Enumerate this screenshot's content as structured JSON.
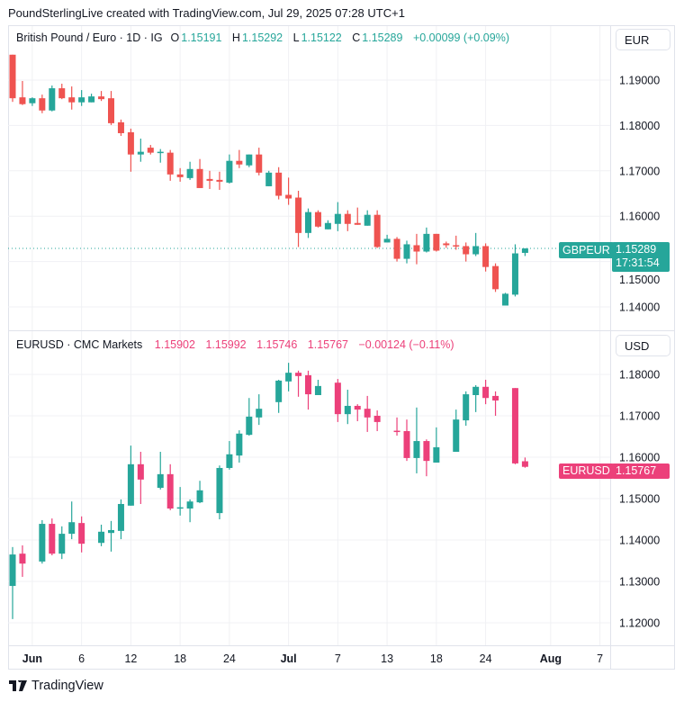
{
  "header": {
    "credit": "PoundSterlingLive created with TradingView.com, Jul 29, 2025 07:28 UTC+1"
  },
  "colors": {
    "up": "#26a69a",
    "down_top": "#ef5350",
    "down_bottom": "#ec407a",
    "grid": "#f0f1f4"
  },
  "top_pane": {
    "symbol": "British Pound / Euro · 1D · IG",
    "o_label": "O",
    "o": "1.15191",
    "h_label": "H",
    "h": "1.15292",
    "l_label": "L",
    "l": "1.15122",
    "c_label": "C",
    "c": "1.15289",
    "change": "+0.00099 (+0.09%)",
    "currency": "EUR",
    "price_ticks": [
      "1.19000",
      "1.18000",
      "1.17000",
      "1.16000",
      "1.15000",
      "1.14000"
    ],
    "tag_symbol": "GBPEUR",
    "tag_price": "1.15289",
    "tag_countdown": "17:31:54",
    "last_price": 1.15289
  },
  "bottom_pane": {
    "symbol": "EURUSD · CMC Markets",
    "o": "1.15902",
    "h": "1.15992",
    "l": "1.15746",
    "c": "1.15767",
    "change": "−0.00124 (−0.11%)",
    "currency": "USD",
    "price_ticks": [
      "1.18000",
      "1.17000",
      "1.16000",
      "1.15000",
      "1.14000",
      "1.13000",
      "1.12000"
    ],
    "tag_symbol": "EURUSD",
    "tag_price": "1.15767",
    "last_price": 1.15767
  },
  "time_axis": [
    {
      "label": "Jun",
      "bar": 2,
      "bold": true
    },
    {
      "label": "6",
      "bar": 7
    },
    {
      "label": "12",
      "bar": 12
    },
    {
      "label": "18",
      "bar": 17
    },
    {
      "label": "24",
      "bar": 22
    },
    {
      "label": "Jul",
      "bar": 28,
      "bold": true
    },
    {
      "label": "7",
      "bar": 33
    },
    {
      "label": "13",
      "bar": 38
    },
    {
      "label": "18",
      "bar": 43
    },
    {
      "label": "24",
      "bar": 48
    },
    {
      "label": "Aug",
      "bar": 54.6,
      "bold": true
    },
    {
      "label": "7",
      "bar": 59.6
    }
  ],
  "footer": {
    "brand": "TradingView"
  },
  "chart_data": [
    {
      "type": "candlestick",
      "title": "British Pound / Euro · 1D · IG",
      "ylim": [
        1.135,
        1.1975
      ],
      "ohlc": [
        [
          1.1956,
          1.1956,
          1.1852,
          1.186
        ],
        [
          1.1862,
          1.1898,
          1.1845,
          1.1847
        ],
        [
          1.1849,
          1.1862,
          1.1843,
          1.186
        ],
        [
          1.186,
          1.1868,
          1.1827,
          1.1833
        ],
        [
          1.1833,
          1.1888,
          1.1831,
          1.1882
        ],
        [
          1.1882,
          1.1892,
          1.1858,
          1.186
        ],
        [
          1.1862,
          1.1886,
          1.1835,
          1.1851
        ],
        [
          1.1851,
          1.1878,
          1.1843,
          1.1862
        ],
        [
          1.1851,
          1.187,
          1.1851,
          1.1864
        ],
        [
          1.1864,
          1.1876,
          1.1854,
          1.1858
        ],
        [
          1.186,
          1.1876,
          1.1801,
          1.1805
        ],
        [
          1.1807,
          1.1813,
          1.1777,
          1.1783
        ],
        [
          1.1785,
          1.1793,
          1.1698,
          1.1736
        ],
        [
          1.1736,
          1.1771,
          1.172,
          1.1742
        ],
        [
          1.1751,
          1.1757,
          1.1736,
          1.174
        ],
        [
          1.174,
          1.1748,
          1.1718,
          1.1742
        ],
        [
          1.174,
          1.1746,
          1.1678,
          1.1692
        ],
        [
          1.1692,
          1.1706,
          1.1676,
          1.1686
        ],
        [
          1.1684,
          1.172,
          1.168,
          1.1704
        ],
        [
          1.1704,
          1.1726,
          1.1662,
          1.1662
        ],
        [
          1.1682,
          1.17,
          1.166,
          1.1678
        ],
        [
          1.168,
          1.1698,
          1.1658,
          1.1676
        ],
        [
          1.1674,
          1.1736,
          1.1672,
          1.1722
        ],
        [
          1.1722,
          1.1746,
          1.1706,
          1.1714
        ],
        [
          1.1712,
          1.1736,
          1.1708,
          1.1736
        ],
        [
          1.1736,
          1.1751,
          1.169,
          1.1696
        ],
        [
          1.1666,
          1.17,
          1.1666,
          1.1696
        ],
        [
          1.1696,
          1.1708,
          1.1637,
          1.1645
        ],
        [
          1.1647,
          1.1685,
          1.1625,
          1.1639
        ],
        [
          1.1641,
          1.1656,
          1.1532,
          1.1563
        ],
        [
          1.1563,
          1.1617,
          1.1552,
          1.1609
        ],
        [
          1.1609,
          1.1613,
          1.1575,
          1.1577
        ],
        [
          1.1571,
          1.1591,
          1.1571,
          1.1585
        ],
        [
          1.1583,
          1.1631,
          1.1567,
          1.1605
        ],
        [
          1.1605,
          1.1613,
          1.1567,
          1.1583
        ],
        [
          1.1585,
          1.1619,
          1.1581,
          1.1581
        ],
        [
          1.1579,
          1.1613,
          1.1579,
          1.1603
        ],
        [
          1.1603,
          1.1613,
          1.153,
          1.1532
        ],
        [
          1.1542,
          1.1559,
          1.1542,
          1.155
        ],
        [
          1.155,
          1.1554,
          1.15,
          1.1506
        ],
        [
          1.1506,
          1.1546,
          1.1496,
          1.1538
        ],
        [
          1.1536,
          1.1561,
          1.1494,
          1.1522
        ],
        [
          1.1522,
          1.1575,
          1.152,
          1.1561
        ],
        [
          1.1561,
          1.1561,
          1.1522,
          1.1524
        ],
        [
          1.154,
          1.1544,
          1.153,
          1.1536
        ],
        [
          1.1536,
          1.1557,
          1.1526,
          1.1534
        ],
        [
          1.1534,
          1.1542,
          1.15,
          1.1516
        ],
        [
          1.1516,
          1.1563,
          1.1512,
          1.1534
        ],
        [
          1.1534,
          1.154,
          1.1478,
          1.1488
        ],
        [
          1.149,
          1.1496,
          1.1433,
          1.1439
        ],
        [
          1.1403,
          1.1431,
          1.1403,
          1.1429
        ],
        [
          1.1427,
          1.1538,
          1.1423,
          1.1518
        ],
        [
          1.15191,
          1.15292,
          1.15122,
          1.15289
        ]
      ]
    },
    {
      "type": "candlestick",
      "title": "EURUSD · CMC Markets",
      "ylim": [
        1.1155,
        1.1875
      ],
      "bars": [
        0,
        1,
        3,
        4,
        5,
        6,
        7,
        9,
        10,
        11,
        12,
        13,
        15,
        16,
        17,
        18,
        19,
        21,
        22,
        23,
        24,
        25,
        27,
        28,
        29,
        30,
        31,
        33,
        34,
        35,
        36,
        37,
        39,
        40,
        41,
        42,
        43,
        45,
        46,
        47,
        48,
        49,
        51,
        52
      ],
      "ohlc": [
        [
          1.1289,
          1.1383,
          1.1209,
          1.1365
        ],
        [
          1.1367,
          1.1387,
          1.1311,
          1.1343
        ],
        [
          1.1348,
          1.1448,
          1.1343,
          1.1439
        ],
        [
          1.1439,
          1.1452,
          1.1363,
          1.1367
        ],
        [
          1.1367,
          1.1433,
          1.1354,
          1.1415
        ],
        [
          1.1415,
          1.1493,
          1.1402,
          1.1443
        ],
        [
          1.1441,
          1.1457,
          1.137,
          1.1391
        ],
        [
          1.1393,
          1.1437,
          1.1385,
          1.142
        ],
        [
          1.1417,
          1.1446,
          1.1372,
          1.1424
        ],
        [
          1.1422,
          1.1498,
          1.1402,
          1.1487
        ],
        [
          1.1483,
          1.1628,
          1.1483,
          1.1583
        ],
        [
          1.1583,
          1.1613,
          1.1487,
          1.1546
        ],
        [
          1.1526,
          1.1613,
          1.1522,
          1.1559
        ],
        [
          1.1559,
          1.1583,
          1.1472,
          1.1476
        ],
        [
          1.1478,
          1.1528,
          1.1459,
          1.1479
        ],
        [
          1.1476,
          1.1498,
          1.1443,
          1.1493
        ],
        [
          1.1491,
          1.1543,
          1.1489,
          1.152
        ],
        [
          1.1465,
          1.158,
          1.145,
          1.1574
        ],
        [
          1.1574,
          1.1639,
          1.157,
          1.1607
        ],
        [
          1.1604,
          1.1665,
          1.1587,
          1.1657
        ],
        [
          1.1654,
          1.1743,
          1.1652,
          1.1698
        ],
        [
          1.1696,
          1.1752,
          1.1678,
          1.1717
        ],
        [
          1.1733,
          1.1787,
          1.1707,
          1.1785
        ],
        [
          1.1783,
          1.1828,
          1.1759,
          1.1804
        ],
        [
          1.1804,
          1.1809,
          1.1746,
          1.1796
        ],
        [
          1.1798,
          1.1809,
          1.1715,
          1.1752
        ],
        [
          1.175,
          1.1787,
          1.175,
          1.1772
        ],
        [
          1.178,
          1.1789,
          1.1685,
          1.1704
        ],
        [
          1.1704,
          1.1763,
          1.168,
          1.1724
        ],
        [
          1.1724,
          1.1728,
          1.1687,
          1.1715
        ],
        [
          1.1717,
          1.1748,
          1.1661,
          1.1696
        ],
        [
          1.17,
          1.1713,
          1.1663,
          1.1685
        ],
        [
          1.1664,
          1.1696,
          1.1652,
          1.1663
        ],
        [
          1.1663,
          1.1691,
          1.1591,
          1.1598
        ],
        [
          1.1598,
          1.172,
          1.1561,
          1.1639
        ],
        [
          1.1639,
          1.1643,
          1.1554,
          1.1591
        ],
        [
          1.1587,
          1.1672,
          1.1587,
          1.1624
        ],
        [
          1.1613,
          1.1715,
          1.1613,
          1.1691
        ],
        [
          1.1689,
          1.1759,
          1.1676,
          1.1752
        ],
        [
          1.175,
          1.1774,
          1.1709,
          1.177
        ],
        [
          1.177,
          1.1787,
          1.1728,
          1.1743
        ],
        [
          1.1748,
          1.1759,
          1.17,
          1.1737
        ],
        [
          1.1767,
          1.1767,
          1.1583,
          1.1585
        ],
        [
          1.15902,
          1.15992,
          1.15746,
          1.15767
        ]
      ]
    }
  ]
}
